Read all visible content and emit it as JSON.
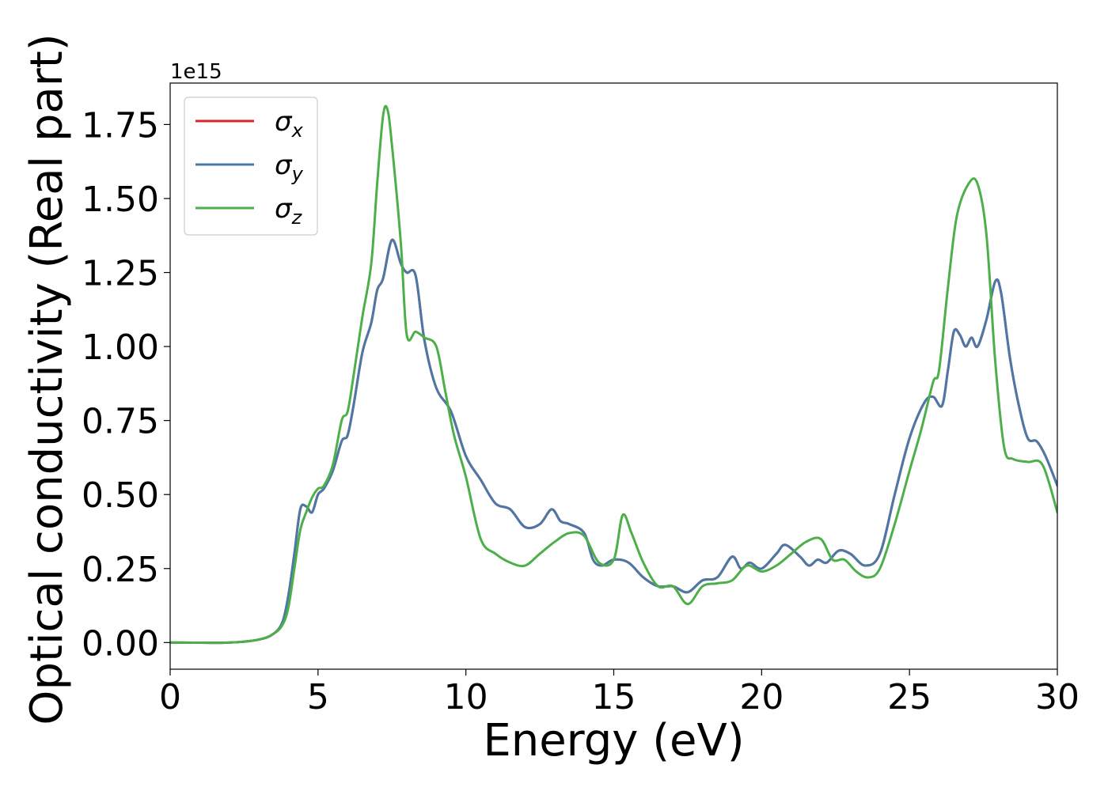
{
  "chart_data": {
    "type": "line",
    "title": "",
    "xlabel": "Energy (eV)",
    "ylabel": "Optical conductivity (Real part)",
    "y_offset_label": "1e15",
    "xlim": [
      0,
      30
    ],
    "ylim": [
      -0.09,
      1.89
    ],
    "xticks": [
      0,
      5,
      10,
      15,
      20,
      25,
      30
    ],
    "xtick_labels": [
      "0",
      "5",
      "10",
      "15",
      "20",
      "25",
      "30"
    ],
    "yticks": [
      0.0,
      0.25,
      0.5,
      0.75,
      1.0,
      1.25,
      1.5,
      1.75
    ],
    "ytick_labels": [
      "0.00",
      "0.25",
      "0.50",
      "0.75",
      "1.00",
      "1.25",
      "1.50",
      "1.75"
    ],
    "grid": false,
    "legend_position": "top-left",
    "series": [
      {
        "name": "σ_x",
        "legend_base": "σ",
        "legend_sub": "x",
        "color": "#d62728",
        "x": [
          0,
          2,
          3,
          3.5,
          3.8,
          4.0,
          4.2,
          4.4,
          4.6,
          4.8,
          5.0,
          5.2,
          5.5,
          5.8,
          6.0,
          6.2,
          6.5,
          6.8,
          7.0,
          7.2,
          7.5,
          7.8,
          8.0,
          8.3,
          8.6,
          9.0,
          9.5,
          10.0,
          10.5,
          11.0,
          11.5,
          12.0,
          12.5,
          12.9,
          13.2,
          13.5,
          14.0,
          14.3,
          14.6,
          15.0,
          15.5,
          16.0,
          16.5,
          17.0,
          17.5,
          18.0,
          18.5,
          19.0,
          19.3,
          19.6,
          20.0,
          20.5,
          20.8,
          21.3,
          21.6,
          21.9,
          22.2,
          22.6,
          23.0,
          23.5,
          24.0,
          24.5,
          25.0,
          25.5,
          25.8,
          26.1,
          26.3,
          26.5,
          26.7,
          26.9,
          27.1,
          27.3,
          27.6,
          27.9,
          28.1,
          28.4,
          28.7,
          29.0,
          29.3,
          29.6,
          30.0
        ],
        "y": [
          0.0,
          0.0,
          0.01,
          0.03,
          0.07,
          0.16,
          0.3,
          0.45,
          0.46,
          0.44,
          0.5,
          0.52,
          0.58,
          0.68,
          0.7,
          0.8,
          0.98,
          1.08,
          1.19,
          1.23,
          1.36,
          1.28,
          1.25,
          1.24,
          1.02,
          0.86,
          0.78,
          0.63,
          0.55,
          0.47,
          0.45,
          0.39,
          0.4,
          0.45,
          0.41,
          0.4,
          0.37,
          0.28,
          0.26,
          0.28,
          0.27,
          0.22,
          0.19,
          0.19,
          0.17,
          0.21,
          0.22,
          0.29,
          0.25,
          0.27,
          0.25,
          0.3,
          0.33,
          0.29,
          0.26,
          0.28,
          0.27,
          0.31,
          0.3,
          0.26,
          0.3,
          0.5,
          0.69,
          0.81,
          0.83,
          0.8,
          0.92,
          1.05,
          1.04,
          1.0,
          1.03,
          1.0,
          1.09,
          1.22,
          1.18,
          0.96,
          0.8,
          0.69,
          0.68,
          0.63,
          0.53
        ]
      },
      {
        "name": "σ_y",
        "legend_base": "σ",
        "legend_sub": "y",
        "color": "#4c78a8",
        "x": [
          0,
          2,
          3,
          3.5,
          3.8,
          4.0,
          4.2,
          4.4,
          4.6,
          4.8,
          5.0,
          5.2,
          5.5,
          5.8,
          6.0,
          6.2,
          6.5,
          6.8,
          7.0,
          7.2,
          7.5,
          7.8,
          8.0,
          8.3,
          8.6,
          9.0,
          9.5,
          10.0,
          10.5,
          11.0,
          11.5,
          12.0,
          12.5,
          12.9,
          13.2,
          13.5,
          14.0,
          14.3,
          14.6,
          15.0,
          15.5,
          16.0,
          16.5,
          17.0,
          17.5,
          18.0,
          18.5,
          19.0,
          19.3,
          19.6,
          20.0,
          20.5,
          20.8,
          21.3,
          21.6,
          21.9,
          22.2,
          22.6,
          23.0,
          23.5,
          24.0,
          24.5,
          25.0,
          25.5,
          25.8,
          26.1,
          26.3,
          26.5,
          26.7,
          26.9,
          27.1,
          27.3,
          27.6,
          27.9,
          28.1,
          28.4,
          28.7,
          29.0,
          29.3,
          29.6,
          30.0
        ],
        "y": [
          0.0,
          0.0,
          0.01,
          0.03,
          0.07,
          0.16,
          0.3,
          0.45,
          0.46,
          0.44,
          0.5,
          0.52,
          0.58,
          0.68,
          0.7,
          0.8,
          0.98,
          1.08,
          1.19,
          1.23,
          1.36,
          1.28,
          1.25,
          1.24,
          1.02,
          0.86,
          0.78,
          0.63,
          0.55,
          0.47,
          0.45,
          0.39,
          0.4,
          0.45,
          0.41,
          0.4,
          0.37,
          0.28,
          0.26,
          0.28,
          0.27,
          0.22,
          0.19,
          0.19,
          0.17,
          0.21,
          0.22,
          0.29,
          0.25,
          0.27,
          0.25,
          0.3,
          0.33,
          0.29,
          0.26,
          0.28,
          0.27,
          0.31,
          0.3,
          0.26,
          0.3,
          0.5,
          0.69,
          0.81,
          0.83,
          0.8,
          0.92,
          1.05,
          1.04,
          1.0,
          1.03,
          1.0,
          1.09,
          1.22,
          1.18,
          0.96,
          0.8,
          0.69,
          0.68,
          0.63,
          0.53
        ]
      },
      {
        "name": "σ_z",
        "legend_base": "σ",
        "legend_sub": "z",
        "color": "#4daf4a",
        "x": [
          0,
          2,
          3,
          3.5,
          3.8,
          4.0,
          4.2,
          4.4,
          4.6,
          4.8,
          5.0,
          5.2,
          5.5,
          5.8,
          6.0,
          6.2,
          6.5,
          6.8,
          7.0,
          7.2,
          7.35,
          7.5,
          7.8,
          8.0,
          8.3,
          8.6,
          9.0,
          9.3,
          9.6,
          10.0,
          10.5,
          11.0,
          11.5,
          12.0,
          12.5,
          13.0,
          13.5,
          14.0,
          14.5,
          15.0,
          15.3,
          15.6,
          16.0,
          16.5,
          17.0,
          17.5,
          18.0,
          18.5,
          19.0,
          19.5,
          20.0,
          20.5,
          21.0,
          21.5,
          22.0,
          22.4,
          22.8,
          23.2,
          23.6,
          24.0,
          24.5,
          25.0,
          25.4,
          25.8,
          26.0,
          26.3,
          26.6,
          27.0,
          27.3,
          27.6,
          27.9,
          28.2,
          28.5,
          29.0,
          29.5,
          30.0
        ],
        "y": [
          0.0,
          0.0,
          0.01,
          0.03,
          0.06,
          0.12,
          0.25,
          0.38,
          0.44,
          0.49,
          0.52,
          0.53,
          0.6,
          0.75,
          0.78,
          0.9,
          1.1,
          1.28,
          1.55,
          1.78,
          1.8,
          1.68,
          1.35,
          1.04,
          1.05,
          1.03,
          1.0,
          0.85,
          0.7,
          0.56,
          0.35,
          0.3,
          0.27,
          0.26,
          0.3,
          0.34,
          0.37,
          0.36,
          0.27,
          0.28,
          0.43,
          0.37,
          0.27,
          0.19,
          0.19,
          0.13,
          0.19,
          0.2,
          0.21,
          0.26,
          0.24,
          0.26,
          0.3,
          0.34,
          0.35,
          0.28,
          0.28,
          0.24,
          0.22,
          0.25,
          0.4,
          0.58,
          0.72,
          0.88,
          0.92,
          1.2,
          1.44,
          1.55,
          1.55,
          1.38,
          0.95,
          0.66,
          0.62,
          0.61,
          0.6,
          0.44
        ]
      }
    ]
  }
}
